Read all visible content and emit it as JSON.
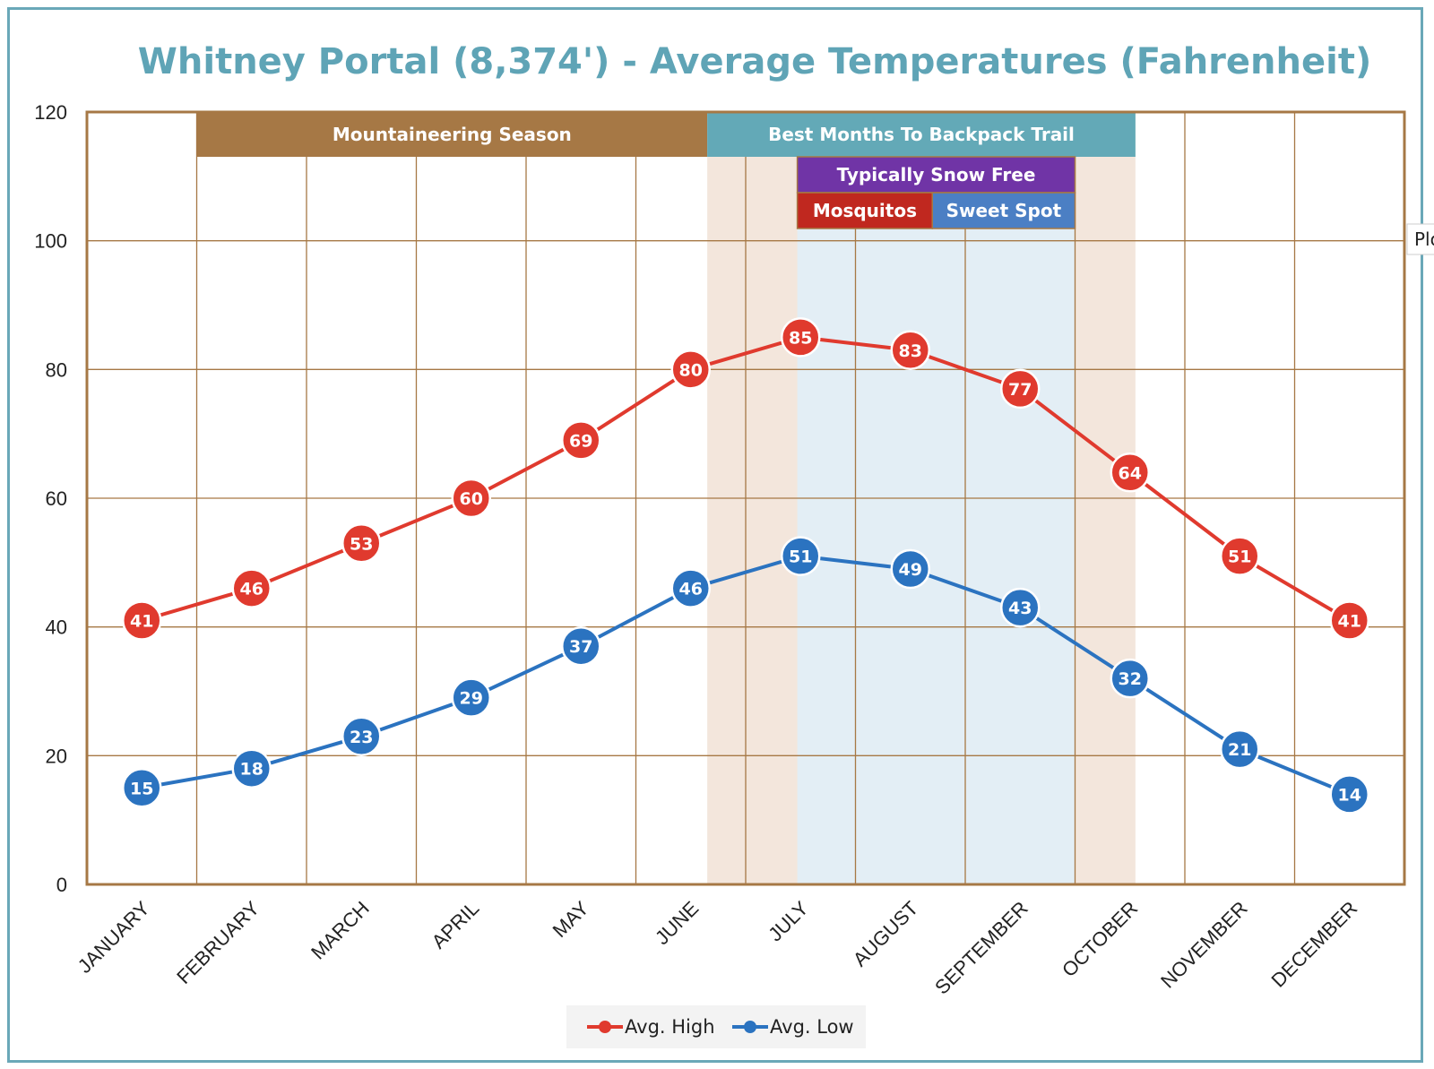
{
  "colors": {
    "frame": "#6aa8b8",
    "title": "#5fa4b6",
    "plot_border": "#a67845",
    "grid": "#a67845",
    "mountaineering": "#a67845",
    "backpack": "#63a9b7",
    "snow_free": "#7034a6",
    "mosquitos": "#c0281f",
    "sweet_spot": "#4b7fc4",
    "backpack_shade": "#f3e6dc",
    "sweet_shade": "#e3eef5",
    "high": "#e03a2e",
    "low": "#2b73c0"
  },
  "side_tag": "Plo",
  "chart_data": {
    "type": "line",
    "title": "Whitney Portal (8,374') - Average Temperatures (Fahrenheit)",
    "xlabel": "",
    "ylabel": "",
    "ylim": [
      0,
      120
    ],
    "yticks": [
      0,
      20,
      40,
      60,
      80,
      100,
      120
    ],
    "grid": true,
    "legend_position": "bottom",
    "categories": [
      "JANUARY",
      "FEBRUARY",
      "MARCH",
      "APRIL",
      "MAY",
      "JUNE",
      "JULY",
      "AUGUST",
      "SEPTEMBER",
      "OCTOBER",
      "NOVEMBER",
      "DECEMBER"
    ],
    "series": [
      {
        "name": "Avg. High",
        "color": "#e03a2e",
        "values": [
          41,
          46,
          53,
          60,
          69,
          80,
          85,
          83,
          77,
          64,
          51,
          41
        ]
      },
      {
        "name": "Avg. Low",
        "color": "#2b73c0",
        "values": [
          15,
          18,
          23,
          29,
          37,
          46,
          51,
          49,
          43,
          32,
          21,
          14
        ]
      }
    ],
    "bands": [
      {
        "label": "Mountaineering Season",
        "from": 1,
        "to": 5.65,
        "row": 0,
        "color": "#a67845"
      },
      {
        "label": "Best Months To Backpack Trail",
        "from": 5.65,
        "to": 9.55,
        "row": 0,
        "color": "#63a9b7"
      },
      {
        "label": "Typically Snow Free",
        "from": 6.47,
        "to": 9.0,
        "row": 1,
        "color": "#7034a6"
      },
      {
        "label": "Mosquitos",
        "from": 6.47,
        "to": 7.7,
        "row": 2,
        "color": "#c0281f"
      },
      {
        "label": "Sweet Spot",
        "from": 7.7,
        "to": 9.0,
        "row": 2,
        "color": "#4b7fc4"
      }
    ],
    "shaded_regions": [
      {
        "from": 5.65,
        "to": 9.55,
        "color": "#f3e6dc"
      },
      {
        "from": 6.47,
        "to": 9.0,
        "color": "#e3eef5"
      }
    ]
  }
}
